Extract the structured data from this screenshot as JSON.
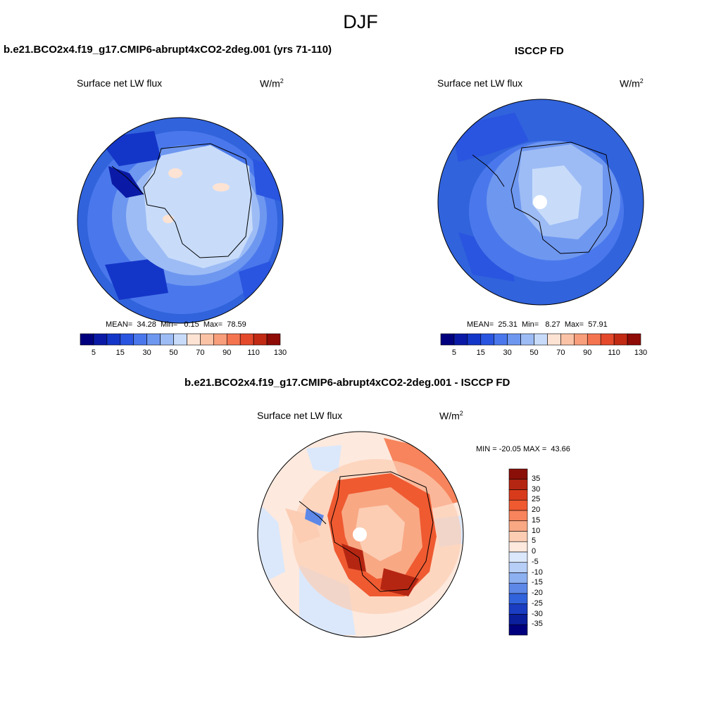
{
  "title": "DJF",
  "panels": [
    {
      "title": "b.e21.BCO2x4.f19_g17.CMIP6-abrupt4xCO2-2deg.001 (yrs 71-110)",
      "variable": "Surface net LW flux",
      "units_base": "W/m",
      "units_exp": "2",
      "mean_label": "MEAN=",
      "mean": "34.28",
      "min_label": "Min=",
      "min": "0.15",
      "max_label": "Max=",
      "max": "78.59",
      "colorbar_ticks": [
        "5",
        "15",
        "30",
        "50",
        "70",
        "90",
        "110",
        "130"
      ]
    },
    {
      "title": "ISCCP FD",
      "variable": "Surface net LW flux",
      "units_base": "W/m",
      "units_exp": "2",
      "mean_label": "MEAN=",
      "mean": "25.31",
      "min_label": "Min=",
      "min": "8.27",
      "max_label": "Max=",
      "max": "57.91",
      "colorbar_ticks": [
        "5",
        "15",
        "30",
        "50",
        "70",
        "90",
        "110",
        "130"
      ]
    }
  ],
  "difference": {
    "title": "b.e21.BCO2x4.f19_g17.CMIP6-abrupt4xCO2-2deg.001 - ISCCP FD",
    "variable": "Surface net LW flux",
    "units_base": "W/m",
    "units_exp": "2",
    "minmax_text": "MIN = -20.05 MAX =  43.66",
    "colorbar_ticks": [
      "35",
      "30",
      "25",
      "20",
      "15",
      "10",
      "5",
      "0",
      "-5",
      "-10",
      "-15",
      "-20",
      "-25",
      "-30",
      "-35"
    ]
  },
  "colors": {
    "seq": [
      "#00007f",
      "#0a1aa6",
      "#1436c8",
      "#2a55e0",
      "#4a78ec",
      "#6e97f0",
      "#9dbcf5",
      "#c8dcfa",
      "#fde3d4",
      "#fbc3a6",
      "#f89e7a",
      "#f47450",
      "#e5492b",
      "#c22a14",
      "#8f0b06"
    ],
    "div": [
      "#8a0f08",
      "#b52612",
      "#d83b1c",
      "#ef5a31",
      "#f7845c",
      "#f9a884",
      "#fccdb3",
      "#fde9de",
      "#dbe8fb",
      "#b7cef7",
      "#8db0f0",
      "#5d88e8",
      "#3163dc",
      "#1a3dc2",
      "#0b1e9b",
      "#00007f"
    ]
  }
}
